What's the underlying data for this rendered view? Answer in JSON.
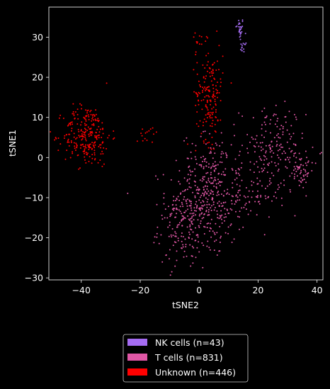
{
  "chart_data": {
    "type": "scatter",
    "title": "",
    "xlabel": "tSNE2",
    "ylabel": "tSNE1",
    "xlim": [
      -51,
      42
    ],
    "ylim": [
      -30.5,
      37.5
    ],
    "xticks": [
      -40,
      -20,
      0,
      20,
      40
    ],
    "yticks": [
      -30,
      -20,
      -10,
      0,
      10,
      20,
      30
    ],
    "grid": false,
    "legend_placement": "bottom-center",
    "background": "#000000",
    "series": [
      {
        "name": "NK cells (n=43)",
        "color": "#a56cf2",
        "n": 43,
        "clusters": [
          {
            "cx": 13.8,
            "cy": 32.0,
            "sx": 0.7,
            "sy": 1.5,
            "n": 30
          },
          {
            "cx": 15.0,
            "cy": 27.5,
            "sx": 0.6,
            "sy": 0.7,
            "n": 13
          }
        ]
      },
      {
        "name": "T cells (n=831)",
        "color": "#e057a5",
        "n": 831,
        "clusters": [
          {
            "cx": 2.0,
            "cy": -12.0,
            "sx": 6.5,
            "sy": 6.5,
            "n": 300
          },
          {
            "cx": -6.0,
            "cy": -18.0,
            "sx": 4.0,
            "sy": 4.5,
            "n": 110
          },
          {
            "cx": 4.0,
            "cy": -4.0,
            "sx": 5.0,
            "sy": 5.0,
            "n": 120
          },
          {
            "cx": 25.0,
            "cy": 2.0,
            "sx": 5.5,
            "sy": 5.5,
            "n": 180
          },
          {
            "cx": 18.0,
            "cy": -10.0,
            "sx": 4.5,
            "sy": 3.0,
            "n": 60
          },
          {
            "cx": 34.0,
            "cy": -3.0,
            "sx": 2.5,
            "sy": 2.5,
            "n": 61
          }
        ]
      },
      {
        "name": "Unknown (n=446)",
        "color": "#ff0000",
        "n": 446,
        "clusters": [
          {
            "cx": -38.0,
            "cy": 5.5,
            "sx": 4.0,
            "sy": 3.8,
            "n": 250
          },
          {
            "cx": 3.5,
            "cy": 16.0,
            "sx": 2.3,
            "sy": 6.0,
            "n": 170
          },
          {
            "cx": -17.5,
            "cy": 6.5,
            "sx": 2.0,
            "sy": 1.0,
            "n": 15
          },
          {
            "cx": 0.0,
            "cy": 28.5,
            "sx": 1.3,
            "sy": 1.2,
            "n": 11
          }
        ]
      }
    ]
  },
  "legend": {
    "items": [
      {
        "label": "NK cells (n=43)",
        "color": "#a56cf2"
      },
      {
        "label": "T cells (n=831)",
        "color": "#e057a5"
      },
      {
        "label": "Unknown (n=446)",
        "color": "#ff0000"
      }
    ]
  }
}
